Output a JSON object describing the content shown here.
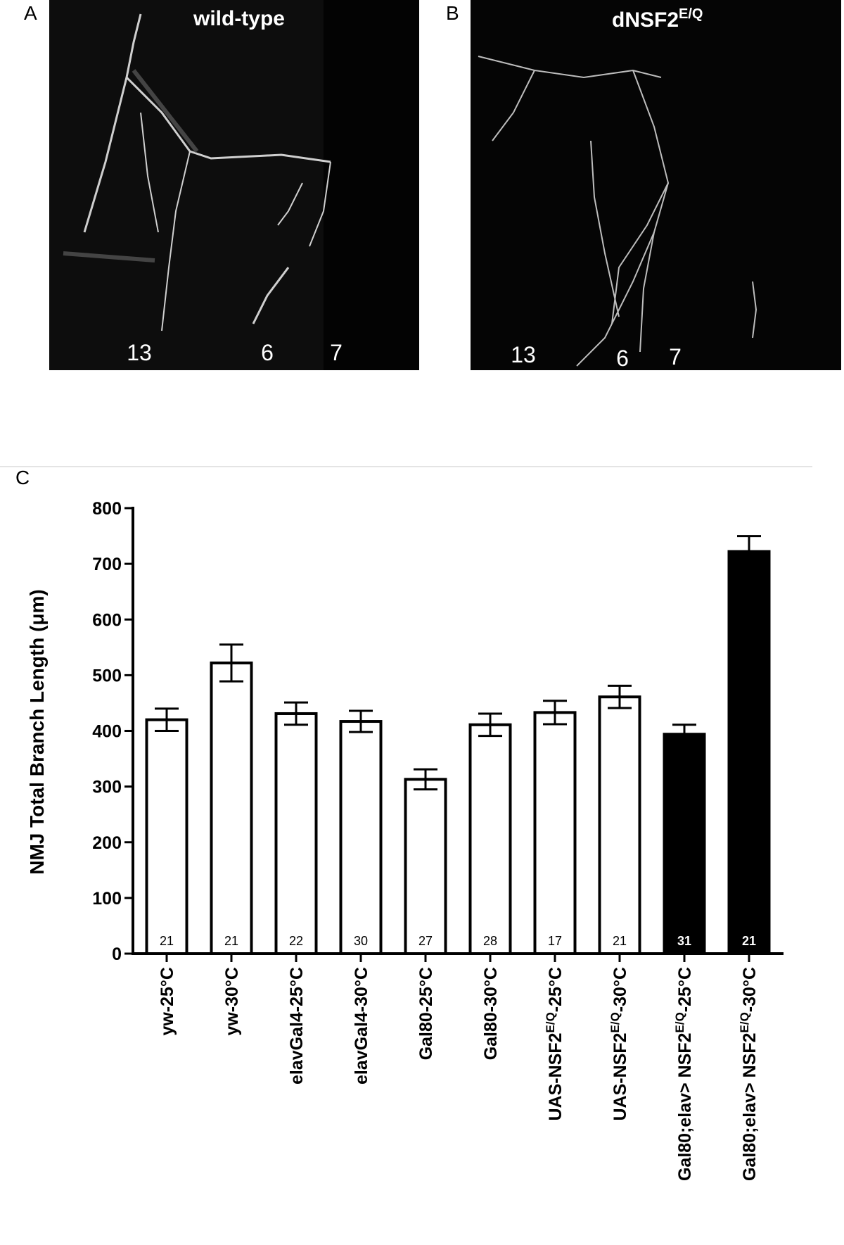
{
  "panels": [
    {
      "letter": "A",
      "title": [
        "wild-type"
      ],
      "muscles": [
        "13",
        "6",
        "7"
      ]
    },
    {
      "letter": "B",
      "title": [
        "dNSF2",
        "E/Q"
      ],
      "muscles": [
        "13",
        "6",
        "7"
      ]
    }
  ],
  "chart_data": {
    "type": "bar",
    "letter": "C",
    "ylabel": "NMJ Total Branch Length (μm)",
    "categories": [
      [
        "yw-25°C"
      ],
      [
        "yw-30°C"
      ],
      [
        "elavGal4-25°C"
      ],
      [
        "elavGal4-30°C"
      ],
      [
        "Gal80-25°C"
      ],
      [
        "Gal80-30°C"
      ],
      [
        "UAS-NSF2",
        "E/Q",
        "-25°C"
      ],
      [
        "UAS-NSF2",
        "E/Q",
        "-30°C"
      ],
      [
        "Gal80;elav> NSF2",
        "E/Q",
        "-25°C"
      ],
      [
        "Gal80;elav> NSF2",
        "E/Q",
        "-30°C"
      ]
    ],
    "values": [
      420,
      522,
      431,
      417,
      313,
      411,
      433,
      461,
      394,
      722
    ],
    "errors": [
      20,
      33,
      20,
      19,
      18,
      20,
      21,
      20,
      17,
      28
    ],
    "n": [
      "21",
      "21",
      "22",
      "30",
      "27",
      "28",
      "17",
      "21",
      "31",
      "21"
    ],
    "colors": [
      "#ffffff",
      "#ffffff",
      "#ffffff",
      "#ffffff",
      "#ffffff",
      "#ffffff",
      "#ffffff",
      "#ffffff",
      "#000000",
      "#000000"
    ],
    "ylim": [
      0,
      800
    ],
    "yticks": [
      0,
      100,
      200,
      300,
      400,
      500,
      600,
      700,
      800
    ]
  }
}
